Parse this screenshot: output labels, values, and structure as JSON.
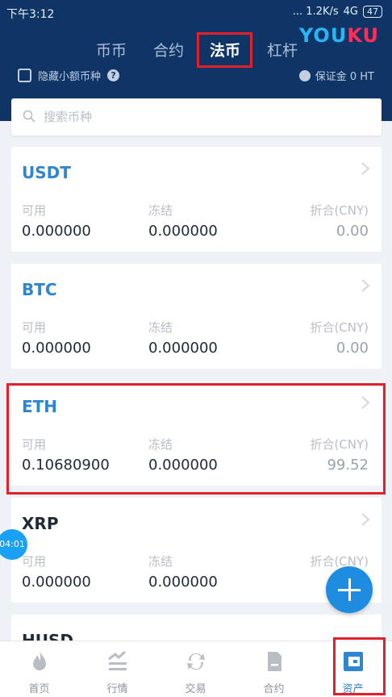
{
  "status_bar": {
    "time": "下午3:12",
    "net_speed": "...  1.2K/s",
    "network": "4G",
    "battery": "47"
  },
  "brand": {
    "logo_text": "YOUKU"
  },
  "tabs": [
    {
      "label": "币币",
      "active": false
    },
    {
      "label": "合约",
      "active": false
    },
    {
      "label": "法币",
      "active": true
    },
    {
      "label": "杠杆",
      "active": false
    }
  ],
  "filters": {
    "hide_small_label": "隐藏小额币种",
    "margin_label": "保证金 0 HT"
  },
  "search": {
    "placeholder": "搜索币种"
  },
  "columns": {
    "available": "可用",
    "frozen": "冻结",
    "converted": "折合(CNY)"
  },
  "assets": [
    {
      "name": "USDT",
      "available": "0.000000",
      "frozen": "0.000000",
      "converted": "0.00"
    },
    {
      "name": "BTC",
      "available": "0.000000",
      "frozen": "0.000000",
      "converted": "0.00"
    },
    {
      "name": "ETH",
      "available": "0.10680900",
      "frozen": "0.000000",
      "converted": "99.52"
    },
    {
      "name": "XRP",
      "available": "0.000000",
      "frozen": "0.000000",
      "converted": ""
    },
    {
      "name": "HUSD"
    }
  ],
  "float_timer": "04:01",
  "bottom_nav": [
    {
      "label": "首页",
      "icon": "flame-icon"
    },
    {
      "label": "行情",
      "icon": "chart-icon"
    },
    {
      "label": "交易",
      "icon": "swap-icon"
    },
    {
      "label": "合约",
      "icon": "contract-icon"
    },
    {
      "label": "资产",
      "icon": "wallet-icon",
      "active": true
    }
  ],
  "colors": {
    "header_bg": "#0f3566",
    "accent_blue": "#2e86d1",
    "highlight_red": "#e0202a",
    "fab_blue": "#1e8de0"
  }
}
